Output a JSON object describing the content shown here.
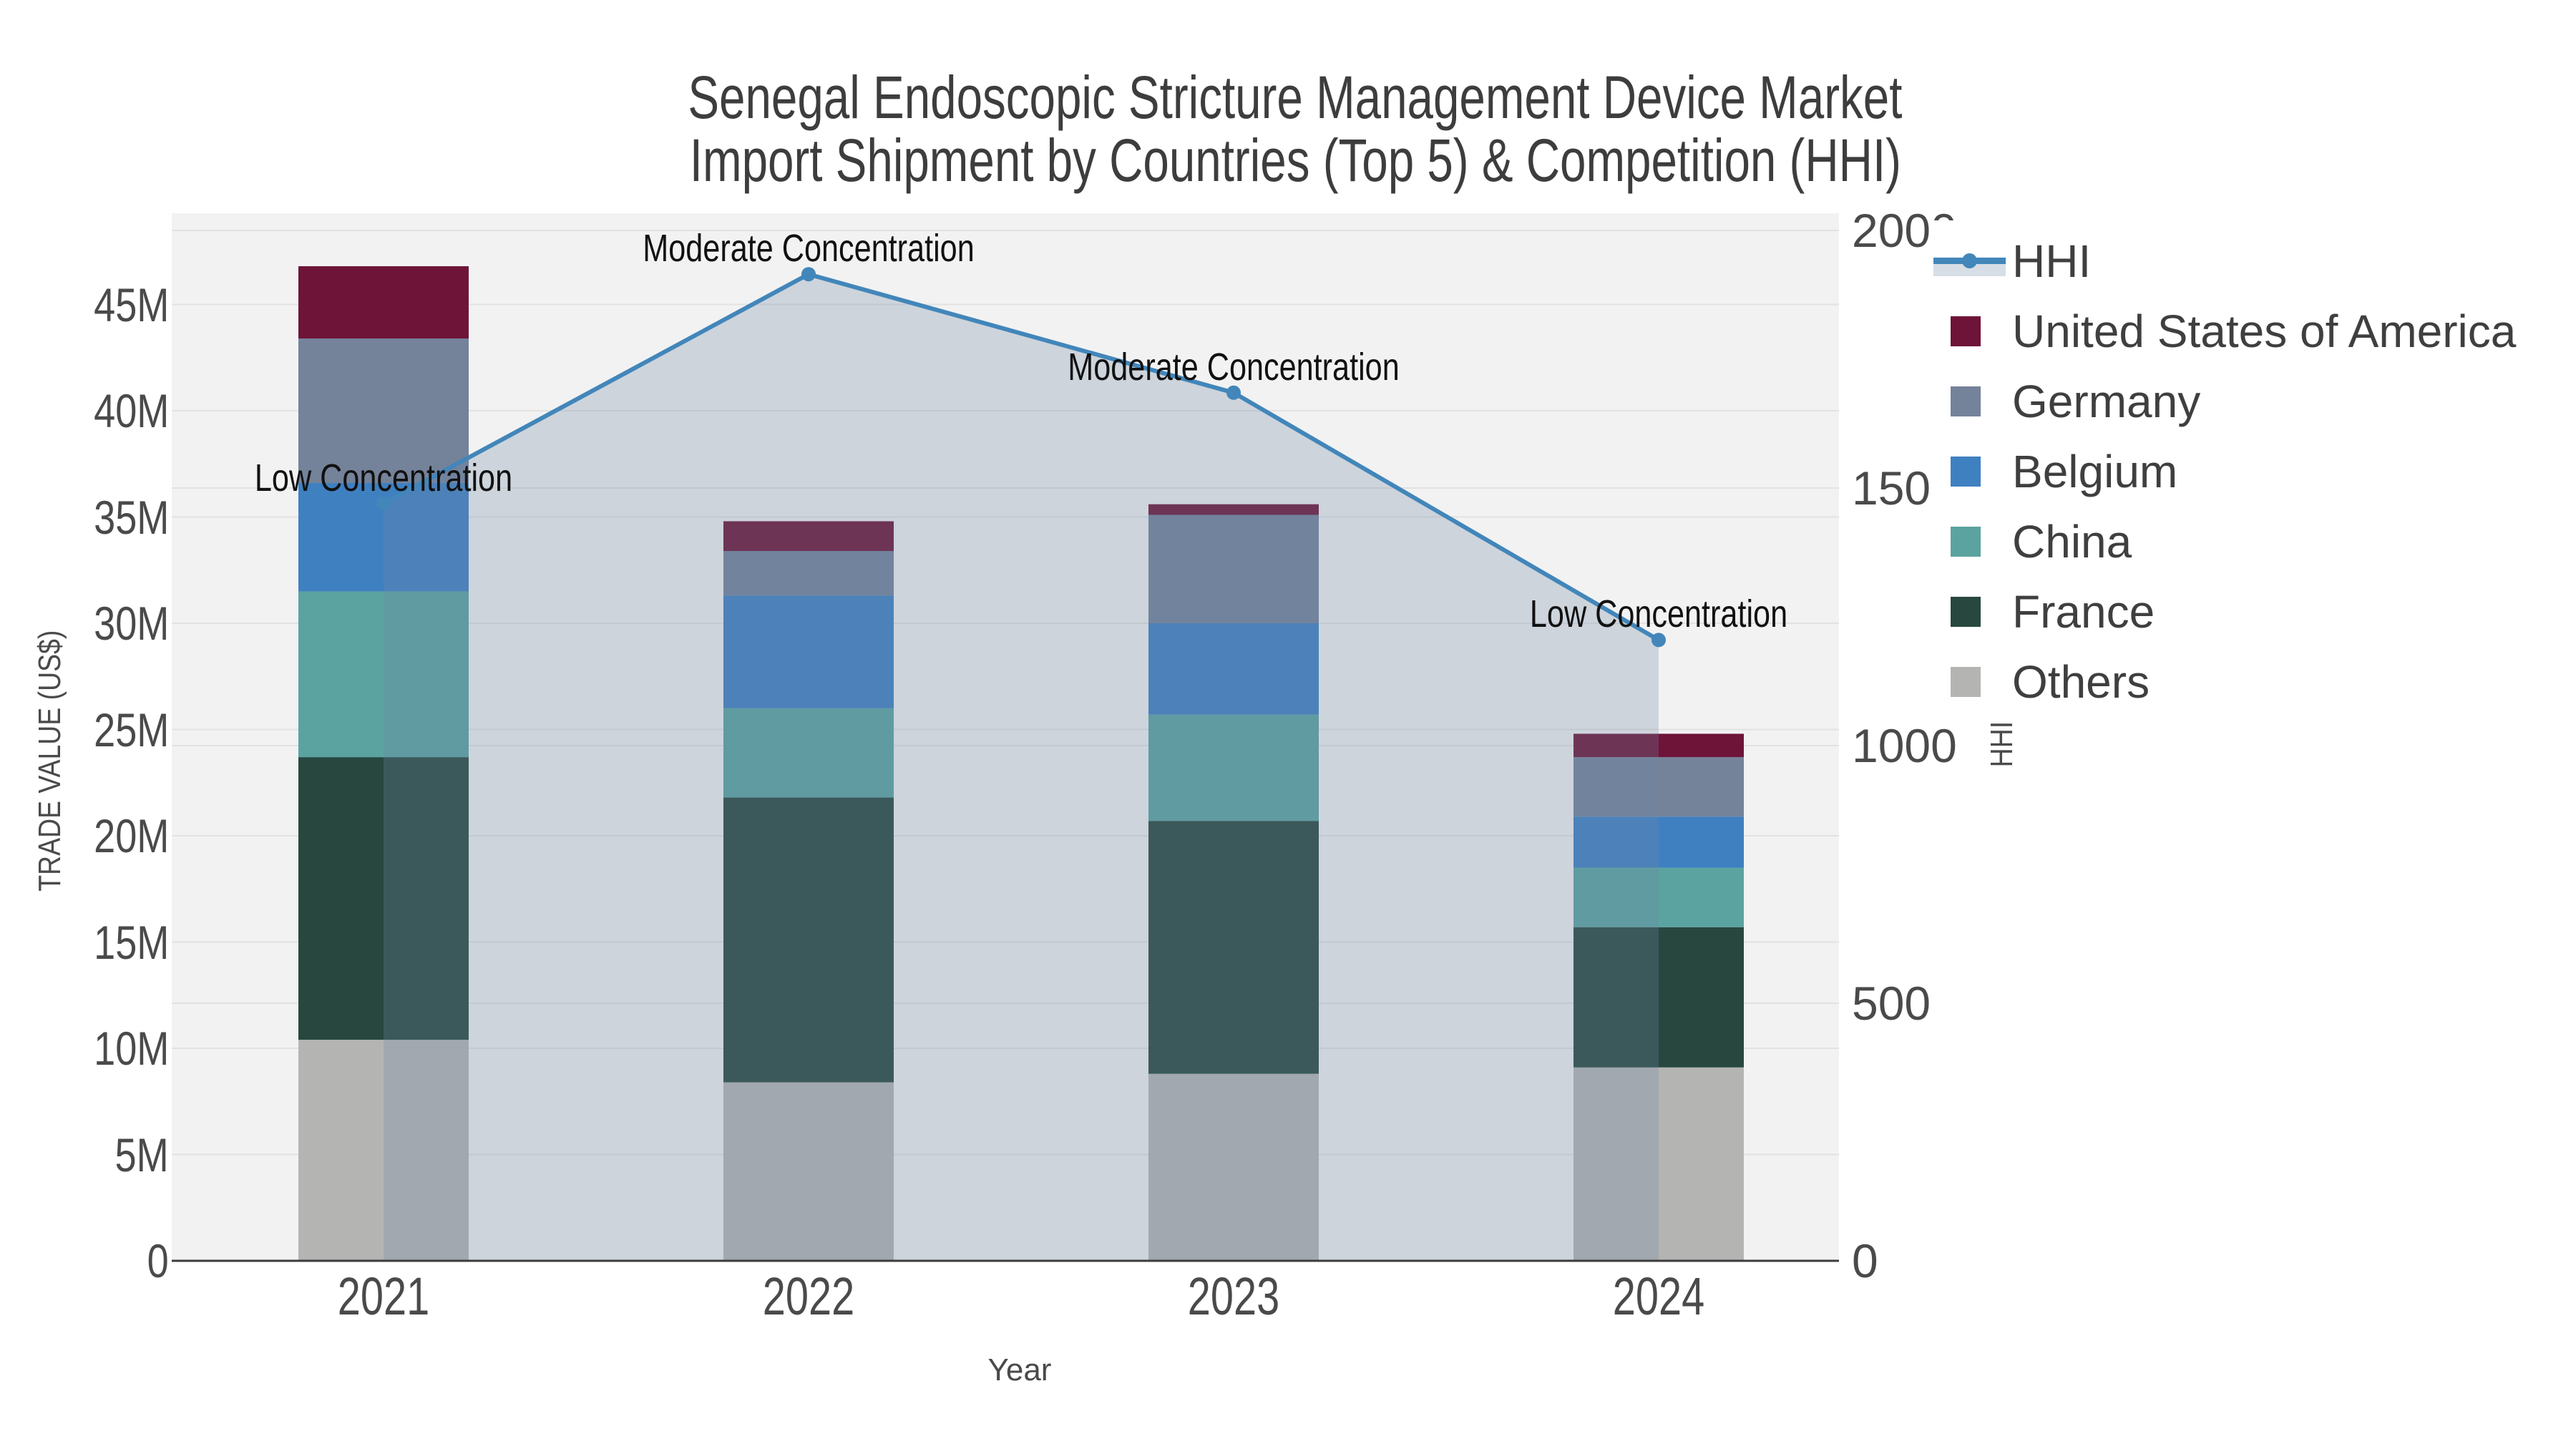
{
  "title": {
    "line1": "Senegal Endoscopic Stricture Management Device Market",
    "line2": "Import Shipment by Countries (Top 5) & Competition (HHI)"
  },
  "axes": {
    "x": {
      "title": "Year",
      "categories": [
        "2021",
        "2022",
        "2023",
        "2024"
      ]
    },
    "left": {
      "title": "TRADE VALUE (US$)",
      "ticks": [
        "0",
        "5M",
        "10M",
        "15M",
        "20M",
        "25M",
        "30M",
        "35M",
        "40M",
        "45M"
      ]
    },
    "right": {
      "title": "HHI",
      "ticks": [
        "0",
        "500",
        "1000",
        "1500",
        "2000"
      ]
    }
  },
  "legend": {
    "items": [
      {
        "label": "HHI",
        "type": "line",
        "color": "#4286ba"
      },
      {
        "label": "United States of America",
        "type": "square",
        "color": "#6e1438"
      },
      {
        "label": "Germany",
        "type": "square",
        "color": "#74829a"
      },
      {
        "label": "Belgium",
        "type": "square",
        "color": "#3f80c1"
      },
      {
        "label": "China",
        "type": "square",
        "color": "#5ba3a0"
      },
      {
        "label": "France",
        "type": "square",
        "color": "#27473f"
      },
      {
        "label": "Others",
        "type": "square",
        "color": "#b4b5b3"
      }
    ]
  },
  "chart_data": {
    "type": [
      "bar",
      "line"
    ],
    "title": "Senegal Endoscopic Stricture Management Device Market Import Shipment by Countries (Top 5) & Competition (HHI)",
    "xlabel": "Year",
    "ylabel_left": "TRADE VALUE (US$)",
    "ylabel_right": "HHI",
    "ylim_left_millions": [
      0,
      49.3
    ],
    "ylim_right": [
      0,
      2037
    ],
    "grid": true,
    "legend_position": "right",
    "categories": [
      "2021",
      "2022",
      "2023",
      "2024"
    ],
    "bar_units": "US$ millions",
    "stack_order_bottom_to_top": [
      "Others",
      "France",
      "China",
      "Belgium",
      "Germany",
      "United States of America"
    ],
    "series": [
      {
        "name": "United States of America",
        "color": "#6e1438",
        "values": [
          3.4,
          1.4,
          0.5,
          1.1
        ]
      },
      {
        "name": "Germany",
        "color": "#74829a",
        "values": [
          6.8,
          2.1,
          5.1,
          2.8
        ]
      },
      {
        "name": "Belgium",
        "color": "#3f80c1",
        "values": [
          5.1,
          5.3,
          4.3,
          2.4
        ]
      },
      {
        "name": "China",
        "color": "#5ba3a0",
        "values": [
          7.8,
          4.2,
          5.0,
          2.8
        ]
      },
      {
        "name": "France",
        "color": "#27473f",
        "values": [
          13.3,
          13.4,
          11.9,
          6.6
        ]
      },
      {
        "name": "Others",
        "color": "#b4b5b3",
        "values": [
          10.4,
          8.4,
          8.8,
          9.1
        ]
      }
    ],
    "bar_totals_millions": [
      46.8,
      34.8,
      35.6,
      24.8
    ],
    "hhi": {
      "name": "HHI",
      "line_color": "#4286ba",
      "fill_color": "rgba(110,135,165,0.28)",
      "values": [
        1470,
        1915,
        1685,
        1205
      ],
      "annotations": [
        "Low Concentration",
        "Moderate Concentration",
        "Moderate Concentration",
        "Low Concentration"
      ]
    }
  },
  "colors": {
    "plot_background": "#f2f2f2",
    "page_background": "#ffffff",
    "gridline": "#e2e2e2",
    "axis_line": "#3c3c3c",
    "tick_text": "#4a4a4a",
    "title_text": "#3d3d3d",
    "annotation_text": "#111111"
  }
}
